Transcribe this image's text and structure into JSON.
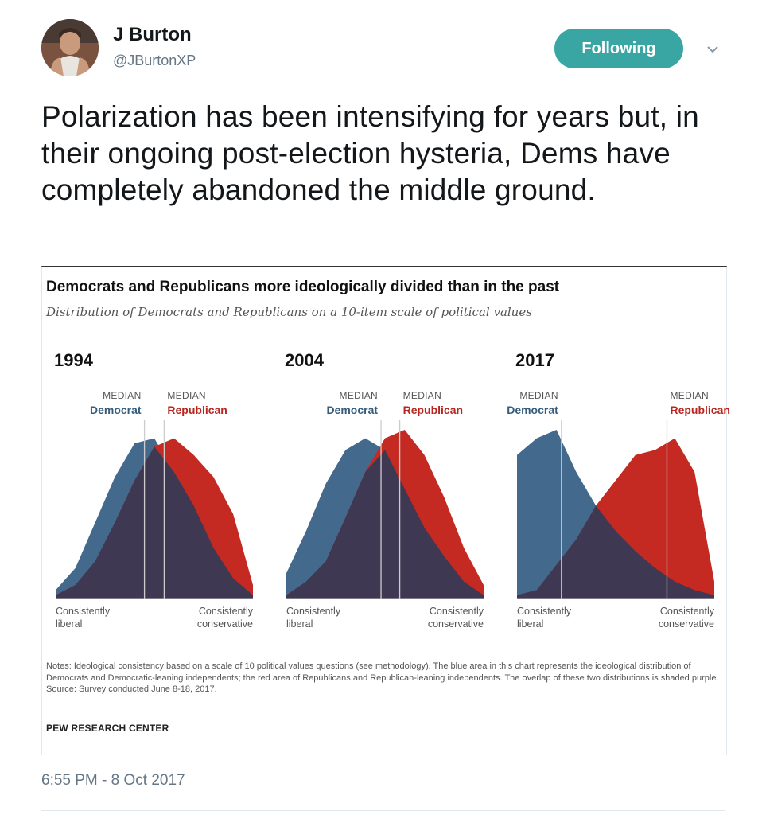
{
  "user": {
    "name": "J Burton",
    "handle": "@JBurtonXP",
    "follow_label": "Following"
  },
  "tweet": {
    "text": "Polarization has been intensifying for years but, in their ongoing post-election hysteria, Dems have completely abandoned the middle ground.",
    "timestamp": "6:55 PM - 8 Oct 2017"
  },
  "colors": {
    "democrat": "#436a8c",
    "republican": "#c42a22",
    "overlap": "#3f3852",
    "accent": "#3aa6a4"
  },
  "chart_data": {
    "type": "area",
    "title": "Democrats and Republicans more ideologically divided than in the past",
    "subtitle": "Distribution of Democrats and Republicans on a 10-item scale of political values",
    "median_word": "MEDIAN",
    "democrat_label": "Democrat",
    "republican_label": "Republican",
    "left_label": "Consistently liberal",
    "right_label": "Consistently conservative",
    "x": [
      -10,
      -8,
      -6,
      -4,
      -2,
      0,
      2,
      4,
      6,
      8,
      10
    ],
    "ylim": [
      0,
      100
    ],
    "panels": [
      {
        "year": "1994",
        "median_dem": -1,
        "median_rep": 1,
        "democrat": [
          5,
          18,
          45,
          72,
          92,
          95,
          75,
          55,
          30,
          12,
          2
        ],
        "republican": [
          2,
          8,
          22,
          45,
          70,
          90,
          95,
          85,
          72,
          50,
          8
        ]
      },
      {
        "year": "2004",
        "median_dem": -0.4,
        "median_rep": 1.5,
        "democrat": [
          15,
          40,
          68,
          88,
          95,
          88,
          65,
          42,
          25,
          10,
          2
        ],
        "republican": [
          2,
          10,
          22,
          48,
          75,
          95,
          100,
          85,
          60,
          30,
          8
        ]
      },
      {
        "year": "2017",
        "median_dem": -5.5,
        "median_rep": 5.2,
        "democrat": [
          85,
          95,
          100,
          75,
          55,
          40,
          28,
          18,
          10,
          5,
          2
        ],
        "republican": [
          2,
          5,
          20,
          35,
          55,
          70,
          85,
          88,
          95,
          75,
          10
        ]
      }
    ],
    "notes": "Notes: Ideological consistency based on a scale of 10 political values questions (see methodology). The blue area in this chart represents the ideological distribution of Democrats and Democratic-leaning independents; the red area of Republicans and Republican-leaning independents. The overlap of these two distributions is shaded purple.",
    "source": "Source: Survey conducted June 8-18, 2017.",
    "org": "PEW RESEARCH CENTER"
  }
}
